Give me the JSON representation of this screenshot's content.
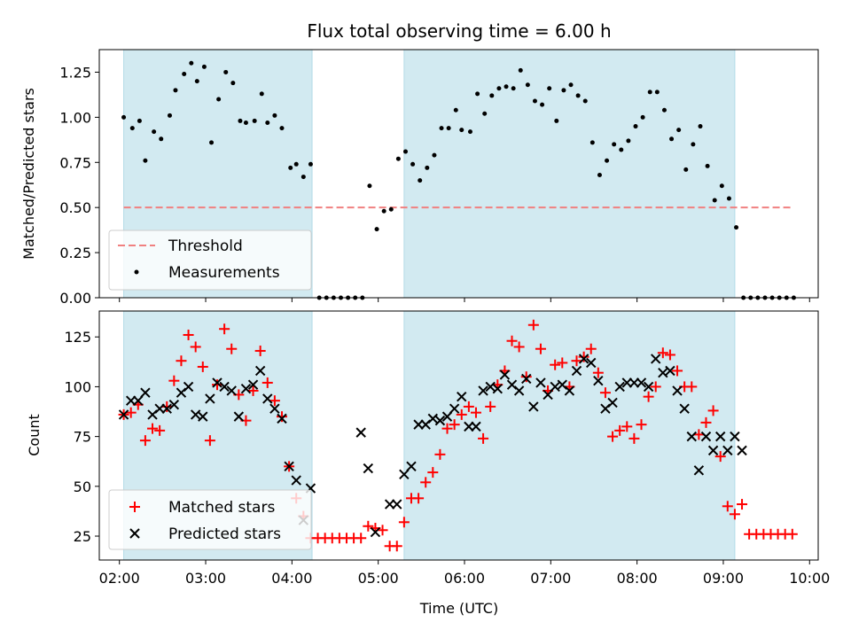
{
  "figure": {
    "title": "Flux total observing time = 6.00 h",
    "xlabel": "Time (UTC)"
  },
  "chart_data": [
    {
      "type": "scatter",
      "ylabel": "Matched/Predicted stars",
      "xlim": [
        "01:46",
        "10:06"
      ],
      "ylim": [
        0,
        1.375
      ],
      "y_ticks": [
        "0.00",
        "0.25",
        "0.50",
        "0.75",
        "1.00",
        "1.25"
      ],
      "y_tick_values": [
        0,
        0.25,
        0.5,
        0.75,
        1.0,
        1.25
      ],
      "shaded_intervals": [
        [
          "02:03",
          "04:14"
        ],
        [
          "05:18",
          "09:08"
        ]
      ],
      "shade_color": "#add8e6",
      "threshold": {
        "name": "Threshold",
        "value": 0.5,
        "x_range": [
          "02:03",
          "09:49"
        ],
        "color": "#f08080"
      },
      "legend": {
        "position": "lower-left",
        "entries": [
          "Threshold",
          "Measurements"
        ]
      },
      "series": [
        {
          "name": "Measurements",
          "color": "#000000",
          "x": [
            "02:03",
            "02:09",
            "02:14",
            "02:18",
            "02:24",
            "02:29",
            "02:35",
            "02:39",
            "02:45",
            "02:50",
            "02:54",
            "02:59",
            "03:04",
            "03:09",
            "03:14",
            "03:19",
            "03:24",
            "03:28",
            "03:34",
            "03:39",
            "03:43",
            "03:48",
            "03:53",
            "03:59",
            "04:03",
            "04:08",
            "04:13",
            "04:19",
            "04:24",
            "04:29",
            "04:34",
            "04:39",
            "04:44",
            "04:49",
            "04:54",
            "04:59",
            "05:04",
            "05:09",
            "05:14",
            "05:19",
            "05:24",
            "05:29",
            "05:34",
            "05:39",
            "05:44",
            "05:49",
            "05:54",
            "05:58",
            "06:04",
            "06:09",
            "06:14",
            "06:19",
            "06:24",
            "06:29",
            "06:34",
            "06:39",
            "06:44",
            "06:49",
            "06:54",
            "06:59",
            "07:04",
            "07:09",
            "07:14",
            "07:19",
            "07:24",
            "07:29",
            "07:34",
            "07:39",
            "07:44",
            "07:49",
            "07:54",
            "07:59",
            "08:04",
            "08:09",
            "08:14",
            "08:19",
            "08:24",
            "08:29",
            "08:34",
            "08:39",
            "08:44",
            "08:49",
            "08:54",
            "08:59",
            "09:04",
            "09:09",
            "09:14",
            "09:19",
            "09:24",
            "09:29",
            "09:34",
            "09:39",
            "09:44",
            "09:49"
          ],
          "y": [
            1.0,
            0.94,
            0.98,
            0.76,
            0.92,
            0.88,
            1.01,
            1.15,
            1.24,
            1.3,
            1.2,
            1.28,
            0.86,
            1.1,
            1.25,
            1.19,
            0.98,
            0.97,
            0.98,
            1.13,
            0.97,
            1.01,
            0.94,
            0.72,
            0.74,
            0.67,
            0.74,
            0.0,
            0.0,
            0.0,
            0.0,
            0.0,
            0.0,
            0.0,
            0.62,
            0.38,
            0.48,
            0.49,
            0.77,
            0.81,
            0.74,
            0.65,
            0.72,
            0.79,
            0.94,
            0.94,
            1.04,
            0.93,
            0.92,
            1.13,
            1.02,
            1.12,
            1.16,
            1.17,
            1.16,
            1.26,
            1.18,
            1.09,
            1.07,
            1.16,
            0.98,
            1.15,
            1.18,
            1.12,
            1.09,
            0.86,
            0.68,
            0.76,
            0.85,
            0.82,
            0.87,
            0.95,
            1.0,
            1.14,
            1.14,
            1.04,
            0.88,
            0.93,
            0.71,
            0.85,
            0.95,
            0.73,
            0.54,
            0.62,
            0.55,
            0.39,
            0.0,
            0.0,
            0.0,
            0.0,
            0.0,
            0.0,
            0.0,
            0.0
          ]
        }
      ]
    },
    {
      "type": "scatter",
      "ylabel": "Count",
      "xlim": [
        "01:46",
        "10:06"
      ],
      "ylim": [
        13,
        138
      ],
      "y_ticks": [
        "25",
        "50",
        "75",
        "100",
        "125"
      ],
      "y_tick_values": [
        25,
        50,
        75,
        100,
        125
      ],
      "x_ticks": [
        "02:00",
        "03:00",
        "04:00",
        "05:00",
        "06:00",
        "07:00",
        "08:00",
        "09:00",
        "10:00"
      ],
      "shaded_intervals": [
        [
          "02:03",
          "04:14"
        ],
        [
          "05:18",
          "09:08"
        ]
      ],
      "shade_color": "#add8e6",
      "legend": {
        "position": "lower-left",
        "entries": [
          "Matched stars",
          "Predicted stars"
        ]
      },
      "series": [
        {
          "name": "Matched stars",
          "marker": "+",
          "color": "#ff0000",
          "x": [
            "02:03",
            "02:08",
            "02:13",
            "02:18",
            "02:23",
            "02:28",
            "02:33",
            "02:38",
            "02:43",
            "02:48",
            "02:53",
            "02:58",
            "03:03",
            "03:08",
            "03:13",
            "03:18",
            "03:23",
            "03:28",
            "03:33",
            "03:38",
            "03:43",
            "03:48",
            "03:53",
            "03:58",
            "04:03",
            "04:08",
            "04:13",
            "04:18",
            "04:23",
            "04:28",
            "04:33",
            "04:38",
            "04:43",
            "04:48",
            "04:53",
            "04:58",
            "05:03",
            "05:08",
            "05:13",
            "05:18",
            "05:23",
            "05:28",
            "05:33",
            "05:38",
            "05:43",
            "05:48",
            "05:53",
            "05:58",
            "06:03",
            "06:08",
            "06:13",
            "06:18",
            "06:23",
            "06:28",
            "06:33",
            "06:38",
            "06:43",
            "06:48",
            "06:53",
            "06:58",
            "07:03",
            "07:08",
            "07:13",
            "07:18",
            "07:23",
            "07:28",
            "07:33",
            "07:38",
            "07:43",
            "07:48",
            "07:53",
            "07:58",
            "08:03",
            "08:08",
            "08:13",
            "08:18",
            "08:23",
            "08:28",
            "08:33",
            "08:38",
            "08:43",
            "08:48",
            "08:53",
            "08:58",
            "09:03",
            "09:08",
            "09:13",
            "09:18",
            "09:23",
            "09:28",
            "09:33",
            "09:38",
            "09:43",
            "09:48"
          ],
          "y": [
            86,
            87,
            91,
            73,
            79,
            78,
            90,
            103,
            113,
            126,
            120,
            110,
            73,
            101,
            129,
            119,
            96,
            83,
            98,
            118,
            102,
            93,
            85,
            60,
            44,
            35,
            24,
            24,
            24,
            24,
            24,
            24,
            24,
            24,
            30,
            29,
            28,
            20,
            20,
            32,
            44,
            44,
            52,
            57,
            66,
            79,
            81,
            86,
            90,
            87,
            74,
            90,
            101,
            108,
            123,
            120,
            105,
            131,
            119,
            98,
            111,
            112,
            100,
            113,
            115,
            119,
            107,
            97,
            75,
            78,
            80,
            74,
            81,
            95,
            100,
            117,
            116,
            108,
            100,
            100,
            76,
            82,
            88,
            65,
            40,
            36,
            41,
            26,
            26,
            26,
            26,
            26,
            26,
            26
          ]
        },
        {
          "name": "Predicted stars",
          "marker": "x",
          "color": "#000000",
          "x": [
            "02:03",
            "02:08",
            "02:13",
            "02:18",
            "02:23",
            "02:28",
            "02:33",
            "02:38",
            "02:43",
            "02:48",
            "02:53",
            "02:58",
            "03:03",
            "03:08",
            "03:13",
            "03:18",
            "03:23",
            "03:28",
            "03:33",
            "03:38",
            "03:43",
            "03:48",
            "03:53",
            "03:58",
            "04:03",
            "04:08",
            "04:13",
            "04:48",
            "04:53",
            "04:58",
            "05:08",
            "05:13",
            "05:18",
            "05:23",
            "05:28",
            "05:33",
            "05:38",
            "05:43",
            "05:48",
            "05:53",
            "05:58",
            "06:03",
            "06:08",
            "06:13",
            "06:18",
            "06:23",
            "06:28",
            "06:33",
            "06:38",
            "06:43",
            "06:48",
            "06:53",
            "06:58",
            "07:03",
            "07:08",
            "07:13",
            "07:18",
            "07:23",
            "07:28",
            "07:33",
            "07:38",
            "07:43",
            "07:48",
            "07:53",
            "07:58",
            "08:03",
            "08:08",
            "08:13",
            "08:18",
            "08:23",
            "08:28",
            "08:33",
            "08:38",
            "08:43",
            "08:48",
            "08:53",
            "08:58",
            "09:03",
            "09:08",
            "09:13"
          ],
          "y": [
            86,
            93,
            93,
            97,
            86,
            89,
            89,
            91,
            97,
            100,
            86,
            85,
            94,
            102,
            100,
            98,
            85,
            99,
            101,
            108,
            94,
            89,
            84,
            60,
            53,
            33,
            49,
            77,
            59,
            27,
            41,
            41,
            56,
            60,
            81,
            81,
            84,
            83,
            85,
            89,
            95,
            80,
            80,
            98,
            100,
            99,
            106,
            101,
            98,
            104,
            90,
            102,
            96,
            100,
            101,
            98,
            108,
            114,
            112,
            103,
            89,
            92,
            100,
            102,
            102,
            102,
            100,
            114,
            107,
            108,
            98,
            89,
            75,
            58,
            75,
            68,
            75,
            68,
            75,
            68
          ]
        }
      ]
    }
  ]
}
